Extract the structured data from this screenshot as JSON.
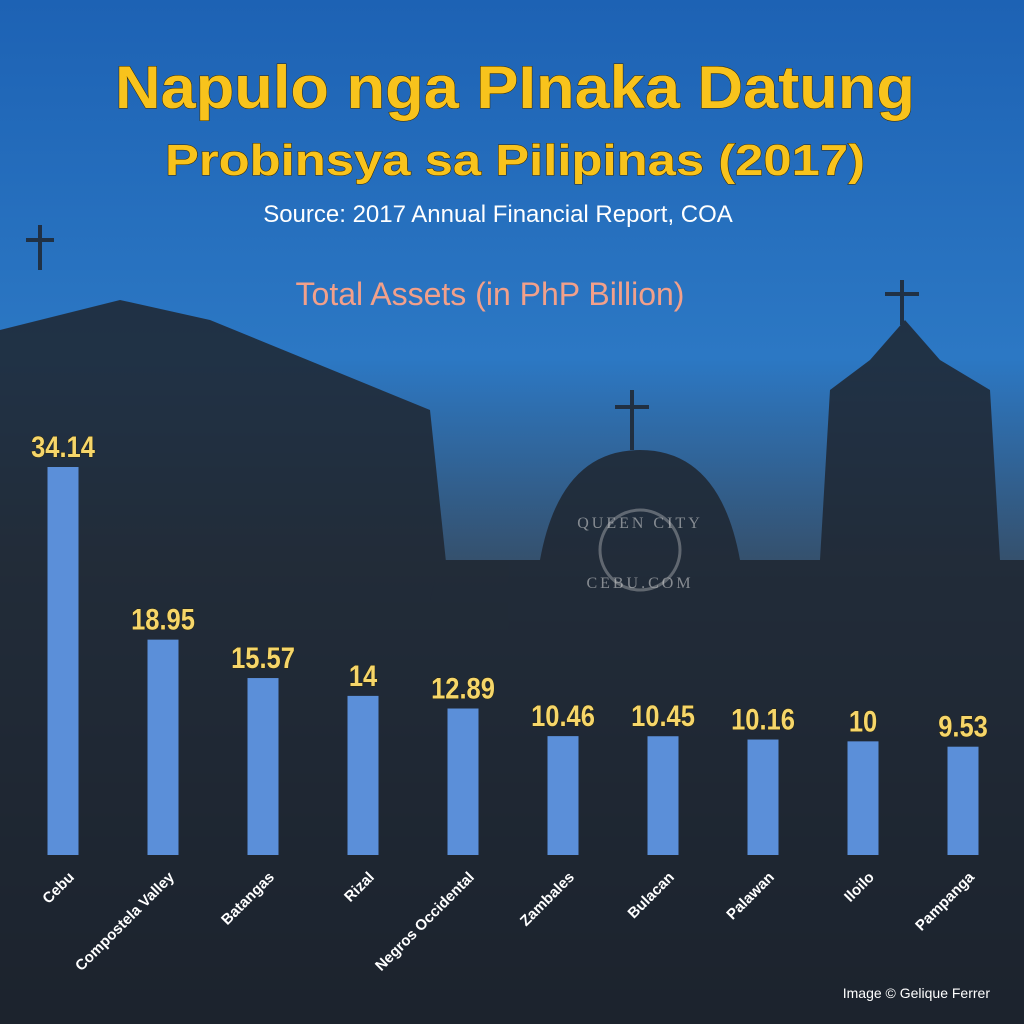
{
  "chart_data": {
    "type": "bar",
    "title": "Napulo nga PInaka Datung",
    "subtitle": "Probinsya sa Pilipinas (2017)",
    "source": "Source: 2017 Annual Financial Report, COA",
    "chart_title": "Total Assets (in PhP Billion)",
    "categories": [
      "Cebu",
      "Compostela Valley",
      "Batangas",
      "Rizal",
      "Negros Occidental",
      "Zambales",
      "Bulacan",
      "Palawan",
      "Iloilo",
      "Pampanga"
    ],
    "values": [
      34.14,
      18.95,
      15.57,
      14,
      12.89,
      10.46,
      10.45,
      10.16,
      10,
      9.53
    ],
    "color": "#5b8fd9",
    "label_color": "#f6d66a",
    "watermark": [
      "QUEEN CITY",
      "CEBU.COM"
    ],
    "credit": "Image © Gelique Ferrer"
  }
}
